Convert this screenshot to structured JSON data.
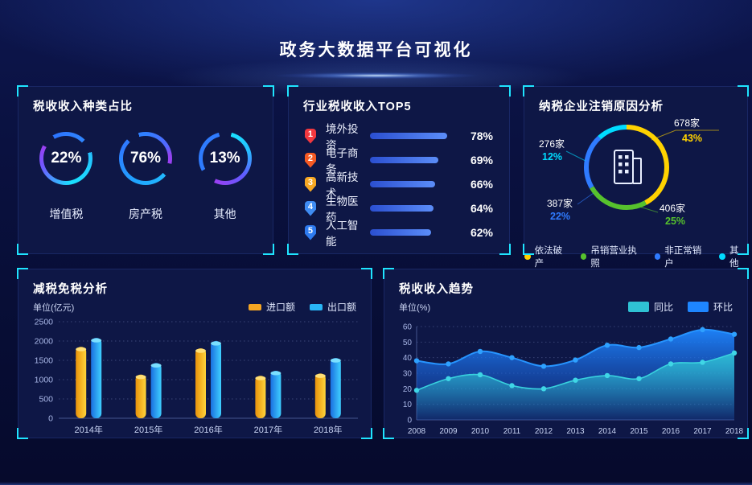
{
  "header": {
    "title": "政务大数据平台可视化"
  },
  "chart_data": [
    {
      "id": "tax-type-share",
      "type": "pie",
      "title": "税收收入种类占比",
      "unit": "%",
      "items": [
        {
          "label": "增值税",
          "value": 22,
          "percent_label": "22%"
        },
        {
          "label": "房产税",
          "value": 76,
          "percent_label": "76%"
        },
        {
          "label": "其他",
          "value": 13,
          "percent_label": "13%"
        }
      ]
    },
    {
      "id": "industry-top5",
      "type": "bar",
      "orientation": "horizontal",
      "title": "行业税收收入TOP5",
      "ranks": [
        "1",
        "2",
        "3",
        "4",
        "5"
      ],
      "categories": [
        "境外投资",
        "电子商务",
        "高新技术",
        "生物医药",
        "人工智能"
      ],
      "values": [
        78,
        69,
        66,
        64,
        62
      ],
      "percent_labels": [
        "78%",
        "69%",
        "66%",
        "64%",
        "62%"
      ],
      "badge_colors": [
        "#f2383f",
        "#f55a23",
        "#f7a823",
        "#3f8cf3",
        "#2e7bf0"
      ],
      "bar_color": "#4a7cf0"
    },
    {
      "id": "deregistration-reasons",
      "type": "pie",
      "title": "纳税企业注销原因分析",
      "slices": [
        {
          "label": "依法破产",
          "count_label": "678家",
          "percent": 43,
          "percent_label": "43%",
          "color": "#ffd200"
        },
        {
          "label": "吊销营业执照",
          "count_label": "406家",
          "percent": 25,
          "percent_label": "25%",
          "color": "#56c22d"
        },
        {
          "label": "非正常销户",
          "count_label": "387家",
          "percent": 22,
          "percent_label": "22%",
          "color": "#2f7bff"
        },
        {
          "label": "其他",
          "count_label": "276家",
          "percent": 12,
          "percent_label": "12%",
          "color": "#00dcff"
        }
      ],
      "center_icon": "building-icon"
    },
    {
      "id": "tax-reduction",
      "type": "bar",
      "title": "减税免税分析",
      "unit_label": "单位(亿元)",
      "ylim": [
        0,
        2500
      ],
      "yticks": [
        0,
        500,
        1000,
        1500,
        2000,
        2500
      ],
      "grid": true,
      "legend_position": "top-right",
      "categories": [
        "2014年",
        "2015年",
        "2016年",
        "2017年",
        "2018年"
      ],
      "series": [
        {
          "name": "进口额",
          "color": "#f5a623",
          "values": [
            1850,
            1130,
            1810,
            1100,
            1160
          ]
        },
        {
          "name": "出口额",
          "color": "#29b6f6",
          "values": [
            2080,
            1430,
            2000,
            1230,
            1560
          ]
        }
      ]
    },
    {
      "id": "tax-trend",
      "type": "area",
      "title": "税收收入趋势",
      "unit_label": "单位(%)",
      "ylim": [
        0,
        60
      ],
      "yticks": [
        0,
        10,
        20,
        30,
        40,
        50,
        60
      ],
      "grid": true,
      "legend_position": "top-right",
      "x": [
        "2008",
        "2009",
        "2010",
        "2011",
        "2012",
        "2013",
        "2014",
        "2015",
        "2016",
        "2017",
        "2018"
      ],
      "series": [
        {
          "name": "同比",
          "color": "#2fc2d4",
          "values": [
            19,
            26.5,
            29,
            22,
            20,
            25.5,
            28.5,
            26.5,
            36,
            37,
            43
          ]
        },
        {
          "name": "环比",
          "color": "#1e86ff",
          "values": [
            38,
            36,
            44,
            40,
            34.5,
            38.5,
            48,
            46.5,
            52,
            58,
            55
          ]
        }
      ]
    }
  ]
}
